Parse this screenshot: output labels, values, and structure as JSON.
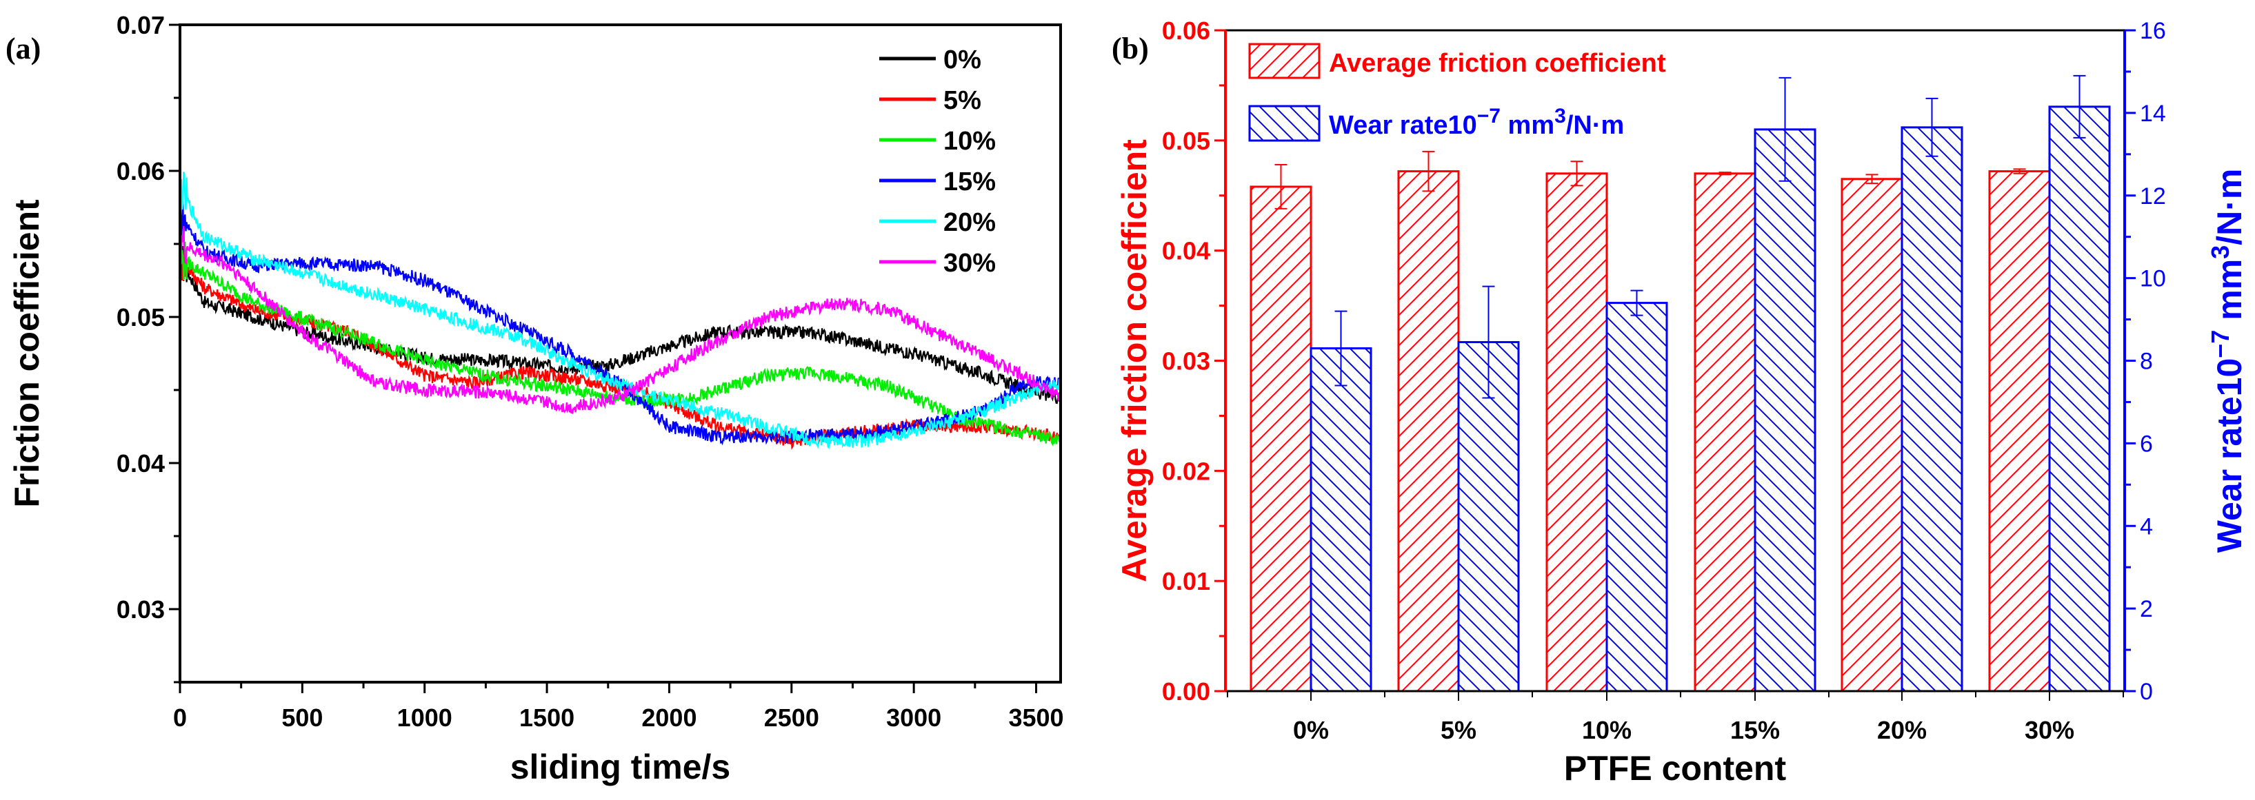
{
  "chart_data": [
    {
      "panel_label": "(a)",
      "type": "line",
      "xlabel": "sliding time/s",
      "ylabel": "Friction coefficient",
      "xlim": [
        0,
        3600
      ],
      "ylim": [
        0.025,
        0.07
      ],
      "xticks": [
        0,
        500,
        1000,
        1500,
        2000,
        2500,
        3000,
        3500
      ],
      "yticks": [
        "0.03",
        "0.04",
        "0.05",
        "0.06",
        "0.07"
      ],
      "legend_position": "top-right",
      "series": [
        {
          "name": "0%",
          "color": "#000000",
          "x": [
            0,
            100,
            500,
            1000,
            1300,
            1600,
            1750,
            2000,
            2200,
            2600,
            3000,
            3300,
            3500,
            3600
          ],
          "y": [
            0.054,
            0.051,
            0.049,
            0.0472,
            0.047,
            0.0465,
            0.0467,
            0.048,
            0.049,
            0.0489,
            0.0475,
            0.046,
            0.0448,
            0.0445
          ]
        },
        {
          "name": "5%",
          "color": "#ff0000",
          "x": [
            0,
            100,
            300,
            700,
            1000,
            1200,
            1400,
            1600,
            1900,
            2200,
            2500,
            2700,
            3000,
            3300,
            3600
          ],
          "y": [
            0.054,
            0.052,
            0.0505,
            0.049,
            0.046,
            0.0455,
            0.0462,
            0.0458,
            0.0448,
            0.0425,
            0.0415,
            0.042,
            0.0425,
            0.0425,
            0.0418
          ]
        },
        {
          "name": "10%",
          "color": "#00ee00",
          "x": [
            0,
            300,
            700,
            1000,
            1300,
            1600,
            1900,
            2100,
            2400,
            2600,
            2900,
            3200,
            3600
          ],
          "y": [
            0.054,
            0.051,
            0.0488,
            0.047,
            0.0458,
            0.045,
            0.0442,
            0.0445,
            0.046,
            0.0462,
            0.0452,
            0.043,
            0.0415
          ]
        },
        {
          "name": "15%",
          "color": "#0000ff",
          "x": [
            0,
            100,
            300,
            500,
            800,
            1000,
            1300,
            1600,
            1800,
            2000,
            2200,
            2500,
            2800,
            3100,
            3300,
            3450,
            3600
          ],
          "y": [
            0.057,
            0.0545,
            0.0535,
            0.0537,
            0.0535,
            0.0525,
            0.05,
            0.0475,
            0.0455,
            0.0425,
            0.0418,
            0.0418,
            0.042,
            0.0428,
            0.0437,
            0.0455,
            0.0455
          ]
        },
        {
          "name": "20%",
          "color": "#00ffff",
          "x": [
            0,
            100,
            300,
            600,
            1000,
            1400,
            1700,
            2000,
            2300,
            2600,
            2800,
            3100,
            3400,
            3600
          ],
          "y": [
            0.059,
            0.0555,
            0.054,
            0.0525,
            0.0505,
            0.0485,
            0.046,
            0.0443,
            0.043,
            0.0415,
            0.0415,
            0.0425,
            0.0443,
            0.0455
          ]
        },
        {
          "name": "30%",
          "color": "#ff00ff",
          "x": [
            0,
            200,
            500,
            800,
            1000,
            1300,
            1600,
            1800,
            2100,
            2400,
            2700,
            2900,
            3200,
            3450,
            3600
          ],
          "y": [
            0.055,
            0.0535,
            0.049,
            0.0455,
            0.045,
            0.0448,
            0.0438,
            0.0445,
            0.0475,
            0.05,
            0.051,
            0.0505,
            0.048,
            0.046,
            0.0445
          ]
        }
      ]
    },
    {
      "panel_label": "(b)",
      "type": "bar",
      "xlabel": "PTFE content",
      "ylabel_left": "Average friction coefficient",
      "ylabel_right_prefix": "Wear rate10",
      "ylabel_right_exp": "−7",
      "ylabel_right_unit": " mm",
      "ylabel_right_unit_exp": "3",
      "ylabel_right_suffix": "/N·m",
      "categories": [
        "0%",
        "5%",
        "10%",
        "15%",
        "20%",
        "30%"
      ],
      "ylim_left": [
        0,
        0.06
      ],
      "ylim_right": [
        0,
        16
      ],
      "yticks_left": [
        "0.00",
        "0.01",
        "0.02",
        "0.03",
        "0.04",
        "0.05",
        "0.06"
      ],
      "yticks_right": [
        "0",
        "2",
        "4",
        "6",
        "8",
        "10",
        "12",
        "14",
        "16"
      ],
      "legend_position": "top-left",
      "series": [
        {
          "name": "Average friction coefficient",
          "axis": "left",
          "color": "#ff0000",
          "values": [
            0.0458,
            0.0472,
            0.047,
            0.047,
            0.0465,
            0.0472
          ],
          "errors": [
            0.002,
            0.0018,
            0.0011,
            0.0001,
            0.0004,
            0.0002
          ]
        },
        {
          "name_prefix": "Wear rate10",
          "name_exp": "−7",
          "name_unit": " mm",
          "name_unit_exp": "3",
          "name_suffix": "/N·m",
          "axis": "right",
          "color": "#0000ff",
          "values": [
            8.3,
            8.45,
            9.4,
            13.6,
            13.65,
            14.15
          ],
          "errors": [
            0.9,
            1.35,
            0.3,
            1.25,
            0.7,
            0.75
          ]
        }
      ]
    }
  ]
}
